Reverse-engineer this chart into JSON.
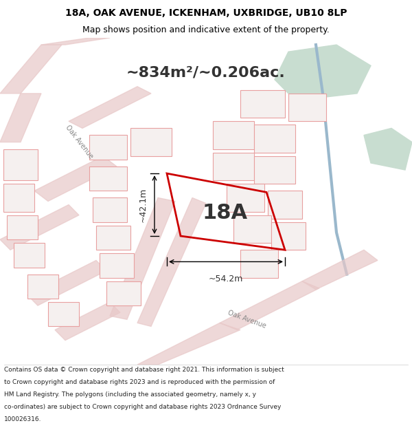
{
  "title_line1": "18A, OAK AVENUE, ICKENHAM, UXBRIDGE, UB10 8LP",
  "title_line2": "Map shows position and indicative extent of the property.",
  "area_text": "~834m²/~0.206ac.",
  "label_18A": "18A",
  "dim_width": "~54.2m",
  "dim_height": "~42.1m",
  "footer_lines": [
    "Contains OS data © Crown copyright and database right 2021. This information is subject",
    "to Crown copyright and database rights 2023 and is reproduced with the permission of",
    "HM Land Registry. The polygons (including the associated geometry, namely x, y",
    "co-ordinates) are subject to Crown copyright and database rights 2023 Ordnance Survey",
    "100026316."
  ],
  "map_bg": "#f2f0ee",
  "highlight_color": "#cc0000",
  "road_color": "#e8c8c8",
  "green_patch_color": "#c8ddd0",
  "blue_line_color": "#9ab8cc",
  "bld_edge": "#e8a0a0",
  "bld_face": "#f5f0ef"
}
